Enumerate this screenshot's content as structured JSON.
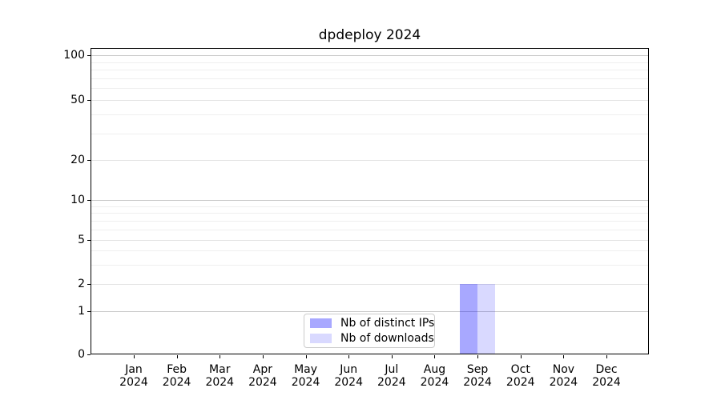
{
  "title": "dpdeploy 2024",
  "chart_data": {
    "type": "bar",
    "title": "dpdeploy 2024",
    "categories": [
      "Jan 2024",
      "Feb 2024",
      "Mar 2024",
      "Apr 2024",
      "May 2024",
      "Jun 2024",
      "Jul 2024",
      "Aug 2024",
      "Sep 2024",
      "Oct 2024",
      "Nov 2024",
      "Dec 2024"
    ],
    "x_tick_line1": [
      "Jan",
      "Feb",
      "Mar",
      "Apr",
      "May",
      "Jun",
      "Jul",
      "Aug",
      "Sep",
      "Oct",
      "Nov",
      "Dec"
    ],
    "x_tick_line2": "2024",
    "series": [
      {
        "name": "Nb of distinct IPs",
        "color": "rgba(0,0,255,0.34)",
        "color_hex_on_white": "#a9a9f7",
        "values": [
          0,
          0,
          0,
          0,
          0,
          0,
          0,
          0,
          2,
          0,
          0,
          0
        ]
      },
      {
        "name": "Nb of downloads",
        "color": "rgba(0,0,255,0.15)",
        "color_hex_on_white": "#d9d9f9",
        "values": [
          0,
          0,
          0,
          0,
          0,
          0,
          0,
          0,
          2,
          0,
          0,
          0
        ]
      }
    ],
    "y_axis": {
      "scale": "log-like above 1 with linear 0-1 segment",
      "major_ticks": [
        0,
        1,
        2,
        5,
        10,
        20,
        50,
        100
      ],
      "decade_ticks": [
        1,
        10,
        100
      ],
      "minor_gridline_values": [
        3,
        4,
        6,
        7,
        8,
        9,
        30,
        40,
        60,
        70,
        80,
        90
      ],
      "range": [
        0,
        100
      ]
    },
    "grid": "horizontal only",
    "legend": {
      "position": "lower center",
      "entries": [
        "Nb of distinct IPs",
        "Nb of downloads"
      ]
    }
  }
}
